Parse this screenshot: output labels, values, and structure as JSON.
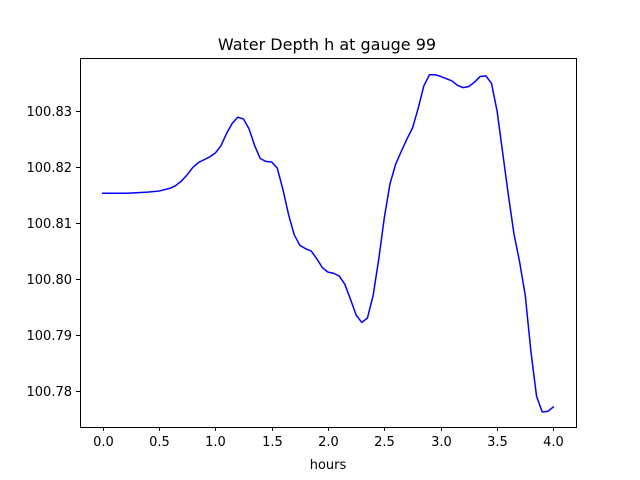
{
  "chart_data": {
    "type": "line",
    "title": "Water Depth h at gauge 99",
    "xlabel": "hours",
    "ylabel": "",
    "xlim": [
      -0.2,
      4.2
    ],
    "ylim": [
      100.7735,
      100.8395
    ],
    "xticks": [
      0.0,
      0.5,
      1.0,
      1.5,
      2.0,
      2.5,
      3.0,
      3.5,
      4.0
    ],
    "xtick_labels": [
      "0.0",
      "0.5",
      "1.0",
      "1.5",
      "2.0",
      "2.5",
      "3.0",
      "3.5",
      "4.0"
    ],
    "yticks": [
      100.78,
      100.79,
      100.8,
      100.81,
      100.82,
      100.83
    ],
    "ytick_labels": [
      "100.78",
      "100.79",
      "100.80",
      "100.81",
      "100.82",
      "100.83"
    ],
    "grid": false,
    "legend": "none",
    "series": [
      {
        "color": "#0000ff",
        "x": [
          0.0,
          0.2,
          0.4,
          0.5,
          0.6,
          0.65,
          0.7,
          0.75,
          0.8,
          0.85,
          0.9,
          0.95,
          1.0,
          1.05,
          1.1,
          1.15,
          1.2,
          1.25,
          1.3,
          1.35,
          1.4,
          1.45,
          1.5,
          1.55,
          1.6,
          1.65,
          1.7,
          1.75,
          1.8,
          1.85,
          1.9,
          1.95,
          2.0,
          2.05,
          2.1,
          2.15,
          2.2,
          2.25,
          2.3,
          2.35,
          2.4,
          2.45,
          2.5,
          2.55,
          2.6,
          2.65,
          2.7,
          2.75,
          2.8,
          2.85,
          2.9,
          2.95,
          3.0,
          3.05,
          3.1,
          3.15,
          3.2,
          3.25,
          3.3,
          3.35,
          3.4,
          3.45,
          3.5,
          3.55,
          3.6,
          3.65,
          3.7,
          3.75,
          3.8,
          3.85,
          3.9,
          3.95,
          4.0
        ],
        "y": [
          100.8153,
          100.8153,
          100.8155,
          100.8157,
          100.8162,
          100.8167,
          100.8175,
          100.8186,
          100.8199,
          100.8208,
          100.8213,
          100.8218,
          100.8225,
          100.8238,
          100.826,
          100.8278,
          100.8289,
          100.8286,
          100.8268,
          100.8238,
          100.8215,
          100.821,
          100.8209,
          100.8198,
          100.816,
          100.8115,
          100.8079,
          100.806,
          100.8054,
          100.805,
          100.8036,
          100.802,
          100.8012,
          100.801,
          100.8005,
          100.799,
          100.7963,
          100.7935,
          100.7922,
          100.793,
          100.797,
          100.8035,
          100.811,
          100.817,
          100.8205,
          100.8228,
          100.825,
          100.827,
          100.8305,
          100.8345,
          100.8365,
          100.8365,
          100.8362,
          100.8358,
          100.8354,
          100.8346,
          100.8342,
          100.8344,
          100.8352,
          100.8362,
          100.8363,
          100.835,
          100.83,
          100.8225,
          100.815,
          100.808,
          100.803,
          100.797,
          100.787,
          100.779,
          100.7762,
          100.7763,
          100.7771
        ]
      }
    ]
  }
}
